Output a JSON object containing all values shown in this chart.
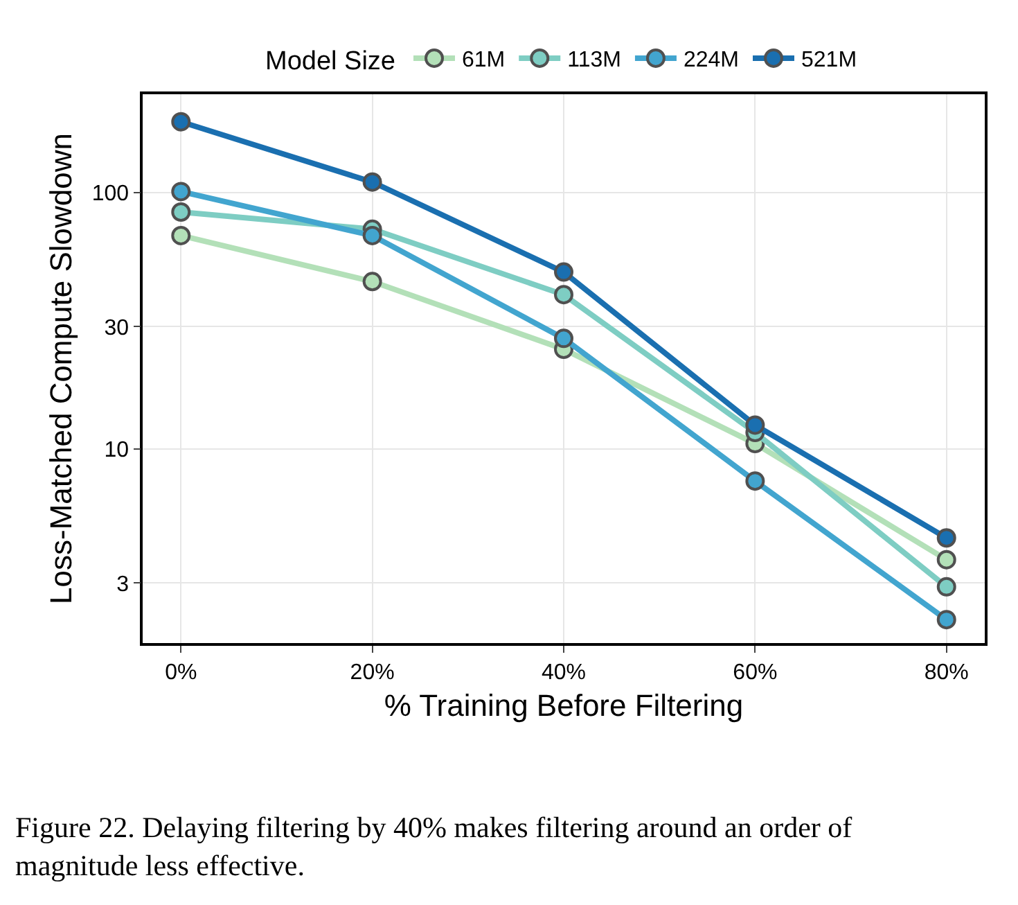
{
  "chart_data": {
    "type": "line",
    "xlabel": "% Training Before Filtering",
    "ylabel": "Loss-Matched Compute Slowdown",
    "legend_title": "Model Size",
    "legend": "top",
    "x": [
      0,
      20,
      40,
      60,
      80
    ],
    "xlim": [
      -4,
      84
    ],
    "xticks": [
      {
        "value": 0,
        "label": "0%"
      },
      {
        "value": 20,
        "label": "20%"
      },
      {
        "value": 40,
        "label": "40%"
      },
      {
        "value": 60,
        "label": "60%"
      },
      {
        "value": 80,
        "label": "80%"
      }
    ],
    "log": "y",
    "ylim": [
      1.75,
      242
    ],
    "yticks": [
      3,
      10,
      30,
      100
    ],
    "grid": true,
    "marker": "circle",
    "line_style": "solid",
    "series": [
      {
        "name": "61M",
        "color": "#b3e0b8",
        "values": [
          68,
          45,
          24.5,
          10.5,
          3.7
        ]
      },
      {
        "name": "113M",
        "color": "#7ecdc3",
        "values": [
          84,
          72,
          40,
          11.6,
          2.9
        ]
      },
      {
        "name": "224M",
        "color": "#42a5cf",
        "values": [
          101,
          68,
          27,
          7.5,
          2.16
        ]
      },
      {
        "name": "521M",
        "color": "#1a6fb0",
        "values": [
          189,
          110,
          49,
          12.4,
          4.5
        ]
      }
    ],
    "annotations": [
      "Figure 22. Delaying filtering by 40% makes filtering around an order of magnitude less effective."
    ]
  }
}
